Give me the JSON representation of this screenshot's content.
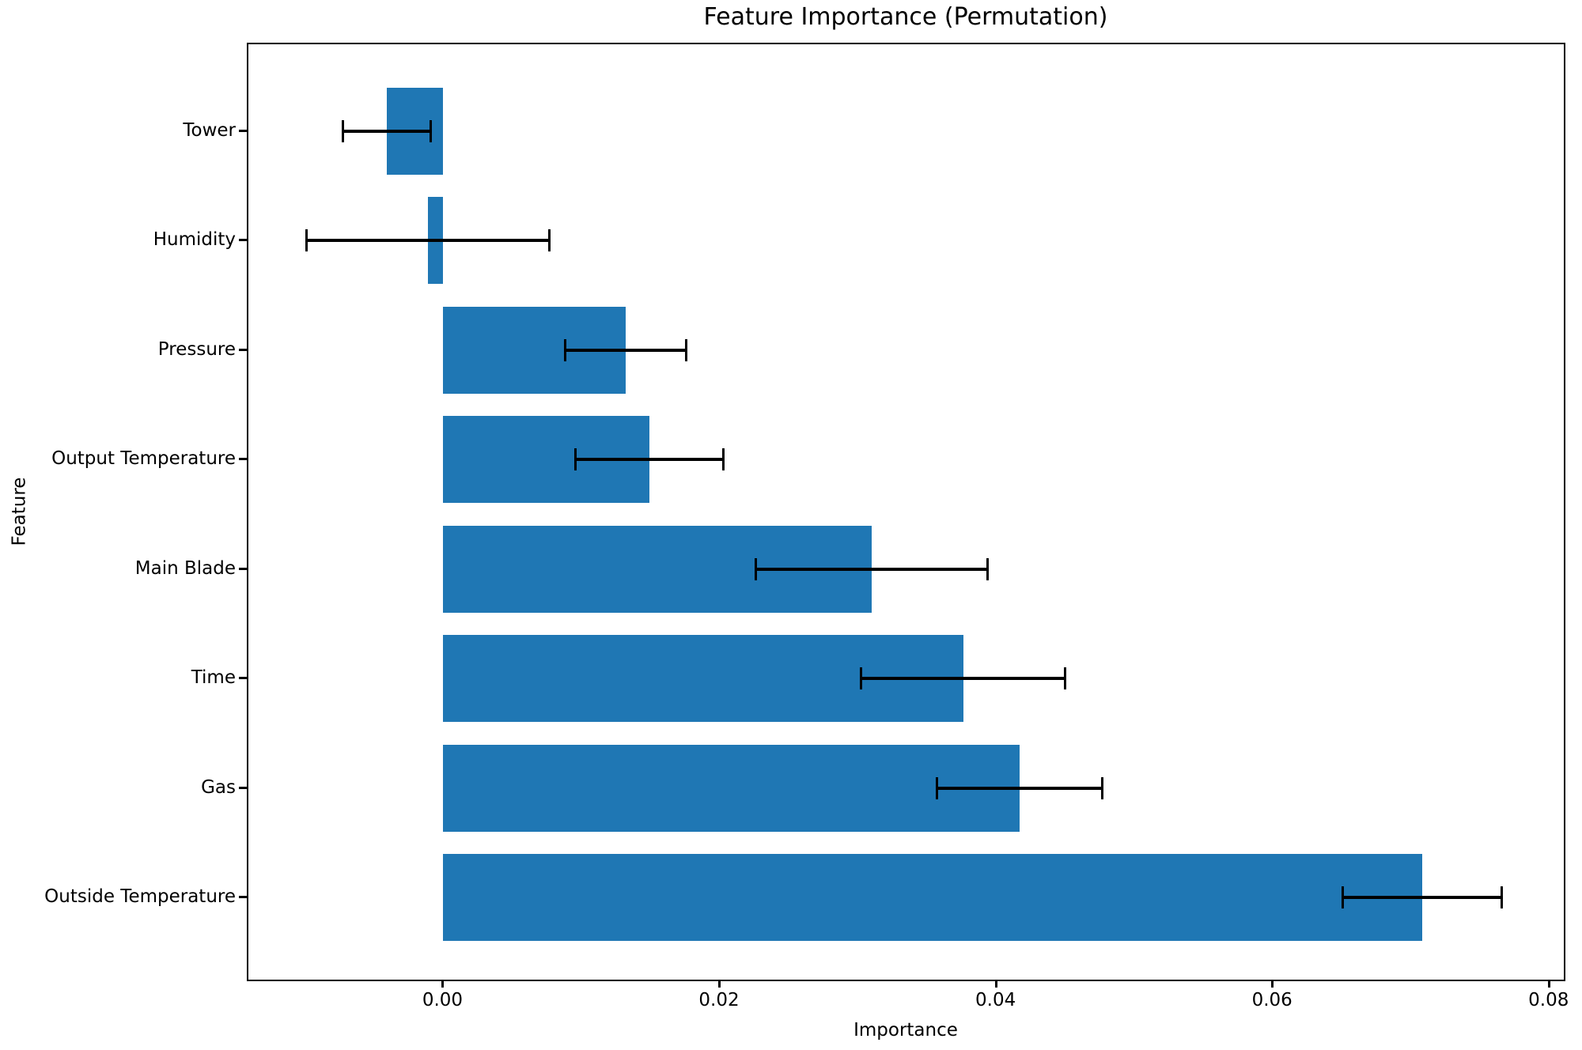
{
  "chart_data": {
    "type": "bar",
    "orientation": "horizontal",
    "title": "Feature Importance (Permutation)",
    "xlabel": "Importance",
    "ylabel": "Feature",
    "categories": [
      "Tower",
      "Humidity",
      "Pressure",
      "Output Temperature",
      "Main Blade",
      "Time",
      "Gas",
      "Outside Temperature"
    ],
    "values": [
      -0.0041,
      -0.0011,
      0.0132,
      0.0149,
      0.031,
      0.0376,
      0.0417,
      0.0708
    ],
    "errors": [
      0.0032,
      0.0088,
      0.0044,
      0.0054,
      0.0084,
      0.0074,
      0.006,
      0.0058
    ],
    "xticks": [
      0,
      0.02,
      0.04,
      0.06,
      0.08
    ],
    "xtick_labels": [
      "0.00",
      "0.02",
      "0.04",
      "0.06",
      "0.08"
    ],
    "xlim": [
      -0.0141,
      0.0811
    ],
    "bar_color": "#1f77b4",
    "error_color": "#000000",
    "background_color": "#ffffff",
    "grid": false,
    "legend": "none"
  }
}
